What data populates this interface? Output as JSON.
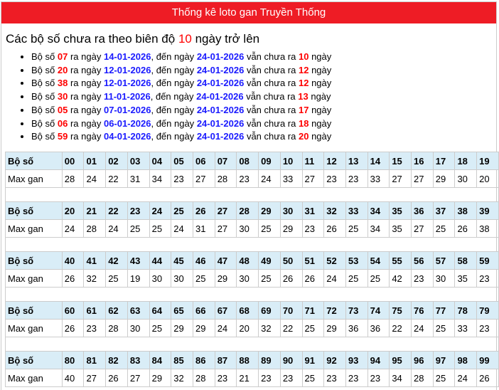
{
  "header": {
    "title": "Thống kê loto gan Truyền Thống"
  },
  "heading": {
    "prefix": "Các bộ số chưa ra theo biên độ",
    "value": "10",
    "suffix": "ngày trở lên"
  },
  "list_text": {
    "a": "Bộ số",
    "b": "ra ngày",
    "c": ", đến ngày",
    "d": "vẫn chưa ra",
    "e": "ngày"
  },
  "items": [
    {
      "num": "07",
      "from": "14-01-2026",
      "to": "24-01-2026",
      "days": "10"
    },
    {
      "num": "20",
      "from": "12-01-2026",
      "to": "24-01-2026",
      "days": "12"
    },
    {
      "num": "38",
      "from": "12-01-2026",
      "to": "24-01-2026",
      "days": "12"
    },
    {
      "num": "30",
      "from": "11-01-2026",
      "to": "24-01-2026",
      "days": "13"
    },
    {
      "num": "05",
      "from": "07-01-2026",
      "to": "24-01-2026",
      "days": "17"
    },
    {
      "num": "06",
      "from": "06-01-2026",
      "to": "24-01-2026",
      "days": "18"
    },
    {
      "num": "59",
      "from": "04-01-2026",
      "to": "24-01-2026",
      "days": "20"
    }
  ],
  "table": {
    "row_label_number": "Bộ số",
    "row_label_value": "Max gan",
    "blocks": [
      {
        "numbers": [
          "00",
          "01",
          "02",
          "03",
          "04",
          "05",
          "06",
          "07",
          "08",
          "09",
          "10",
          "11",
          "12",
          "13",
          "14",
          "15",
          "16",
          "17",
          "18",
          "19"
        ],
        "values": [
          "28",
          "24",
          "22",
          "31",
          "34",
          "23",
          "27",
          "28",
          "23",
          "24",
          "33",
          "27",
          "23",
          "23",
          "33",
          "27",
          "27",
          "29",
          "30",
          "20"
        ]
      },
      {
        "numbers": [
          "20",
          "21",
          "22",
          "23",
          "24",
          "25",
          "26",
          "27",
          "28",
          "29",
          "30",
          "31",
          "32",
          "33",
          "34",
          "35",
          "36",
          "37",
          "38",
          "39"
        ],
        "values": [
          "24",
          "28",
          "24",
          "25",
          "25",
          "24",
          "31",
          "27",
          "30",
          "25",
          "29",
          "23",
          "26",
          "25",
          "34",
          "35",
          "27",
          "25",
          "26",
          "38"
        ]
      },
      {
        "numbers": [
          "40",
          "41",
          "42",
          "43",
          "44",
          "45",
          "46",
          "47",
          "48",
          "49",
          "50",
          "51",
          "52",
          "53",
          "54",
          "55",
          "56",
          "57",
          "58",
          "59"
        ],
        "values": [
          "26",
          "32",
          "25",
          "19",
          "30",
          "30",
          "25",
          "29",
          "30",
          "25",
          "26",
          "26",
          "24",
          "25",
          "25",
          "42",
          "23",
          "30",
          "35",
          "23"
        ]
      },
      {
        "numbers": [
          "60",
          "61",
          "62",
          "63",
          "64",
          "65",
          "66",
          "67",
          "68",
          "69",
          "70",
          "71",
          "72",
          "73",
          "74",
          "75",
          "76",
          "77",
          "78",
          "79"
        ],
        "values": [
          "26",
          "23",
          "28",
          "30",
          "25",
          "29",
          "29",
          "24",
          "20",
          "32",
          "22",
          "25",
          "29",
          "36",
          "36",
          "22",
          "24",
          "25",
          "33",
          "23"
        ]
      },
      {
        "numbers": [
          "80",
          "81",
          "82",
          "83",
          "84",
          "85",
          "86",
          "87",
          "88",
          "89",
          "90",
          "91",
          "92",
          "93",
          "94",
          "95",
          "96",
          "97",
          "98",
          "99"
        ],
        "values": [
          "40",
          "27",
          "26",
          "27",
          "29",
          "32",
          "28",
          "23",
          "21",
          "23",
          "23",
          "25",
          "23",
          "23",
          "23",
          "34",
          "28",
          "25",
          "24",
          "26"
        ]
      }
    ]
  },
  "colors": {
    "header_bg": "#ee1c25",
    "number": "#ff0000",
    "date": "#1a1aff",
    "table_header_bg": "#d9edf7"
  }
}
